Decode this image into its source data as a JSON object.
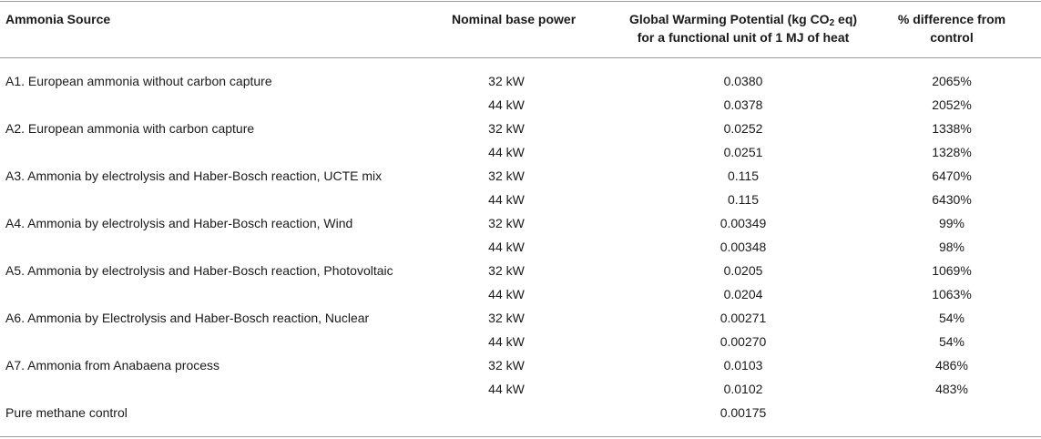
{
  "table": {
    "headers": {
      "source": "Ammonia Source",
      "power": "Nominal base power",
      "gwp_line1_pre": "Global Warming Potential (kg CO",
      "gwp_line1_sub": "2",
      "gwp_line1_post": " eq)",
      "gwp_line2": "for a functional unit of 1 MJ of heat",
      "diff_line1": "% difference from",
      "diff_line2": "control"
    },
    "rows": [
      {
        "source": "A1. European ammonia without carbon capture",
        "power": "32 kW",
        "gwp": "0.0380",
        "diff": "2065%"
      },
      {
        "source": "",
        "power": "44 kW",
        "gwp": "0.0378",
        "diff": "2052%"
      },
      {
        "source": "A2. European ammonia with carbon capture",
        "power": "32 kW",
        "gwp": "0.0252",
        "diff": "1338%"
      },
      {
        "source": "",
        "power": "44 kW",
        "gwp": "0.0251",
        "diff": "1328%"
      },
      {
        "source": "A3. Ammonia by electrolysis and Haber-Bosch reaction, UCTE mix",
        "power": "32 kW",
        "gwp": "0.115",
        "diff": "6470%"
      },
      {
        "source": "",
        "power": "44 kW",
        "gwp": "0.115",
        "diff": "6430%"
      },
      {
        "source": "A4. Ammonia by electrolysis and Haber-Bosch reaction, Wind",
        "power": "32 kW",
        "gwp": "0.00349",
        "diff": "99%"
      },
      {
        "source": "",
        "power": "44 kW",
        "gwp": "0.00348",
        "diff": "98%"
      },
      {
        "source": "A5. Ammonia by electrolysis and Haber-Bosch reaction, Photovoltaic",
        "power": "32 kW",
        "gwp": "0.0205",
        "diff": "1069%"
      },
      {
        "source": "",
        "power": "44 kW",
        "gwp": "0.0204",
        "diff": "1063%"
      },
      {
        "source": "A6. Ammonia by Electrolysis and Haber-Bosch reaction, Nuclear",
        "power": "32 kW",
        "gwp": "0.00271",
        "diff": "54%"
      },
      {
        "source": "",
        "power": "44 kW",
        "gwp": "0.00270",
        "diff": "54%"
      },
      {
        "source": "A7. Ammonia from Anabaena process",
        "power": "32 kW",
        "gwp": "0.0103",
        "diff": "486%"
      },
      {
        "source": "",
        "power": "44 kW",
        "gwp": "0.0102",
        "diff": "483%"
      },
      {
        "source": "Pure methane control",
        "power": "",
        "gwp": "0.00175",
        "diff": ""
      }
    ]
  }
}
